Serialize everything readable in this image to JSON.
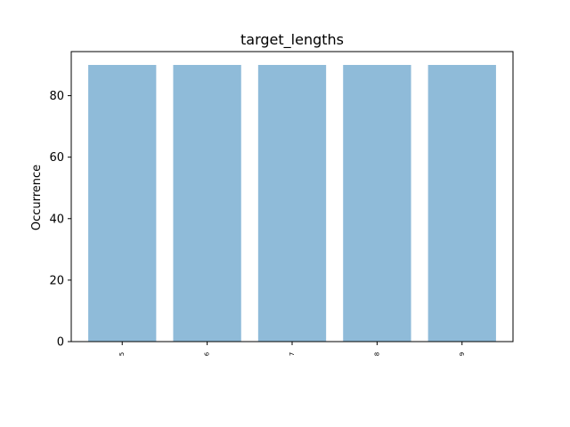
{
  "chart_data": {
    "type": "bar",
    "title": "target_lengths",
    "xlabel": "",
    "ylabel": "Occurrence",
    "categories": [
      "5",
      "6",
      "7",
      "8",
      "9"
    ],
    "values": [
      90,
      90,
      90,
      90,
      90
    ],
    "ylim": [
      0,
      90
    ],
    "yticks": [
      "0",
      "20",
      "40",
      "60",
      "80"
    ],
    "bar_color": "#8fbbd9",
    "grid": false,
    "legend": "none"
  }
}
